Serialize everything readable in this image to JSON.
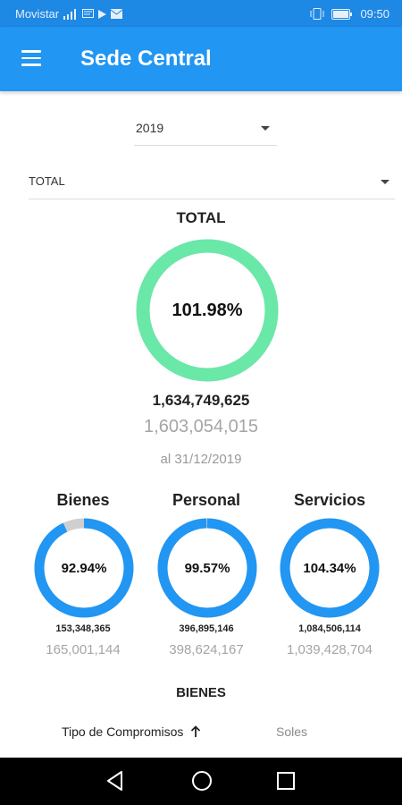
{
  "status_bar": {
    "carrier": "Movistar",
    "time": "09:50",
    "icons": [
      "signal-icon",
      "messages-icon",
      "play-icon",
      "mail-icon",
      "vibrate-icon",
      "battery-icon"
    ]
  },
  "app_bar": {
    "title": "Sede Central",
    "menu_icon": "hamburger-icon"
  },
  "filters": {
    "year": "2019",
    "category": "TOTAL"
  },
  "total": {
    "heading": "TOTAL",
    "percent_label": "101.98%",
    "percent_value": 101.98,
    "amount_primary": "1,634,749,625",
    "amount_secondary": "1,603,054,015",
    "date_note": "al 31/12/2019",
    "color": "#6ae8a8"
  },
  "categories": [
    {
      "name": "Bienes",
      "percent_label": "92.94%",
      "percent_value": 92.94,
      "amount_primary": "153,348,365",
      "amount_secondary": "165,001,144"
    },
    {
      "name": "Personal",
      "percent_label": "99.57%",
      "percent_value": 99.57,
      "amount_primary": "396,895,146",
      "amount_secondary": "398,624,167"
    },
    {
      "name": "Servicios",
      "percent_label": "104.34%",
      "percent_value": 104.34,
      "amount_primary": "1,084,506,114",
      "amount_secondary": "1,039,428,704"
    }
  ],
  "category_ring_color": "#2196f3",
  "category_track_color": "#cfcfcf",
  "section": {
    "heading": "BIENES",
    "columns": [
      {
        "label": "Tipo de Compromisos",
        "sort_icon": "arrow-up-icon"
      },
      {
        "label": "Soles"
      }
    ]
  },
  "nav_bar": {
    "icons": [
      "back-icon",
      "home-icon",
      "recents-icon"
    ]
  },
  "colors": {
    "app_bar": "#2196f3",
    "status_bar": "#1e88e5",
    "nav_bar": "#000000"
  }
}
